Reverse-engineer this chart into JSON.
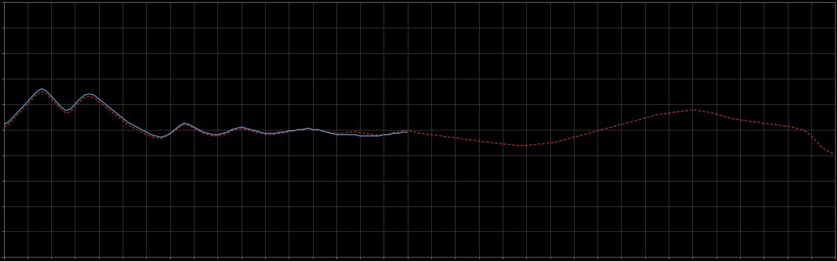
{
  "background_color": "#000000",
  "plot_bg_color": "#000000",
  "grid_color": "#4a4a4a",
  "line1_color": "#6699cc",
  "line2_color": "#cc3333",
  "figsize": [
    12.09,
    3.78
  ],
  "dpi": 100,
  "xlim": [
    0,
    350
  ],
  "ylim": [
    0,
    10
  ],
  "x_major_ticks": [
    0,
    70,
    140,
    210,
    280,
    350
  ],
  "x_minor_ticks_count": 35,
  "y_ticks": [
    0,
    1,
    2,
    3,
    4,
    5,
    6,
    7,
    8,
    9,
    10
  ],
  "blue_x": [
    0,
    2,
    4,
    6,
    8,
    10,
    12,
    14,
    16,
    18,
    20,
    22,
    24,
    26,
    28,
    30,
    32,
    34,
    36,
    38,
    40,
    42,
    44,
    46,
    48,
    50,
    52,
    54,
    56,
    58,
    60,
    62,
    64,
    66,
    68,
    70,
    72,
    74,
    76,
    78,
    80,
    82,
    84,
    86,
    88,
    90,
    92,
    94,
    96,
    98,
    100,
    102,
    104,
    106,
    108,
    110,
    112,
    114,
    116,
    118,
    120,
    122,
    124,
    126,
    128,
    130,
    132,
    134,
    136,
    138,
    140,
    142,
    144,
    146,
    148,
    150,
    152,
    154,
    156,
    158,
    160,
    162,
    164,
    166,
    168,
    170
  ],
  "blue_y": [
    5.2,
    5.3,
    5.5,
    5.7,
    5.9,
    6.1,
    6.3,
    6.5,
    6.6,
    6.5,
    6.3,
    6.1,
    5.9,
    5.75,
    5.8,
    6.0,
    6.2,
    6.35,
    6.4,
    6.35,
    6.2,
    6.05,
    5.9,
    5.75,
    5.6,
    5.45,
    5.3,
    5.2,
    5.1,
    5.0,
    4.9,
    4.8,
    4.75,
    4.7,
    4.75,
    4.85,
    5.0,
    5.15,
    5.25,
    5.2,
    5.1,
    5.0,
    4.9,
    4.85,
    4.8,
    4.8,
    4.85,
    4.9,
    5.0,
    5.05,
    5.1,
    5.05,
    5.0,
    4.95,
    4.9,
    4.85,
    4.85,
    4.85,
    4.9,
    4.9,
    4.95,
    4.95,
    5.0,
    5.0,
    5.05,
    5.0,
    5.0,
    4.95,
    4.9,
    4.85,
    4.8,
    4.8,
    4.8,
    4.8,
    4.8,
    4.75,
    4.75,
    4.75,
    4.75,
    4.75,
    4.8,
    4.8,
    4.85,
    4.85,
    4.9,
    4.9
  ],
  "red_x": [
    0,
    2,
    4,
    6,
    8,
    10,
    12,
    14,
    16,
    18,
    20,
    22,
    24,
    26,
    28,
    30,
    32,
    34,
    36,
    38,
    40,
    42,
    44,
    46,
    48,
    50,
    52,
    54,
    56,
    58,
    60,
    62,
    64,
    66,
    68,
    70,
    72,
    74,
    76,
    78,
    80,
    82,
    84,
    86,
    88,
    90,
    92,
    94,
    96,
    98,
    100,
    102,
    104,
    106,
    108,
    110,
    112,
    114,
    116,
    118,
    120,
    122,
    124,
    126,
    128,
    130,
    132,
    134,
    136,
    138,
    140,
    142,
    144,
    146,
    148,
    150,
    152,
    154,
    156,
    158,
    160,
    162,
    164,
    166,
    168,
    170,
    172,
    174,
    176,
    178,
    180,
    182,
    184,
    186,
    188,
    190,
    192,
    194,
    196,
    198,
    200,
    202,
    204,
    206,
    208,
    210,
    212,
    214,
    216,
    218,
    220,
    222,
    224,
    226,
    228,
    230,
    232,
    234,
    236,
    238,
    240,
    242,
    244,
    246,
    248,
    250,
    252,
    254,
    256,
    258,
    260,
    262,
    264,
    266,
    268,
    270,
    272,
    274,
    276,
    278,
    280,
    282,
    284,
    286,
    288,
    290,
    292,
    294,
    296,
    298,
    300,
    302,
    304,
    306,
    308,
    310,
    312,
    314,
    316,
    318,
    320,
    322,
    324,
    326,
    328,
    330,
    332,
    334,
    336,
    338,
    340,
    342,
    344,
    346,
    348,
    350
  ],
  "red_y": [
    5.1,
    5.2,
    5.4,
    5.6,
    5.8,
    6.0,
    6.2,
    6.4,
    6.5,
    6.4,
    6.2,
    6.0,
    5.8,
    5.65,
    5.7,
    5.9,
    6.1,
    6.25,
    6.3,
    6.25,
    6.1,
    5.95,
    5.8,
    5.65,
    5.5,
    5.35,
    5.2,
    5.1,
    5.0,
    4.9,
    4.8,
    4.72,
    4.68,
    4.65,
    4.72,
    4.82,
    4.95,
    5.1,
    5.2,
    5.15,
    5.05,
    4.95,
    4.85,
    4.8,
    4.75,
    4.75,
    4.8,
    4.85,
    4.95,
    5.0,
    5.05,
    5.0,
    4.95,
    4.9,
    4.85,
    4.8,
    4.8,
    4.82,
    4.85,
    4.88,
    4.92,
    4.95,
    5.0,
    5.02,
    5.05,
    5.0,
    4.98,
    4.95,
    4.9,
    4.88,
    4.85,
    4.85,
    4.88,
    4.9,
    4.92,
    4.88,
    4.85,
    4.82,
    4.8,
    4.78,
    4.8,
    4.82,
    4.88,
    4.9,
    4.95,
    4.98,
    4.92,
    4.88,
    4.85,
    4.82,
    4.8,
    4.78,
    4.75,
    4.72,
    4.7,
    4.68,
    4.65,
    4.62,
    4.6,
    4.58,
    4.55,
    4.52,
    4.5,
    4.48,
    4.46,
    4.44,
    4.42,
    4.4,
    4.38,
    4.38,
    4.38,
    4.4,
    4.42,
    4.44,
    4.46,
    4.48,
    4.5,
    4.55,
    4.6,
    4.65,
    4.7,
    4.75,
    4.8,
    4.85,
    4.9,
    4.95,
    5.0,
    5.05,
    5.1,
    5.15,
    5.2,
    5.25,
    5.3,
    5.35,
    5.4,
    5.45,
    5.5,
    5.55,
    5.6,
    5.62,
    5.65,
    5.68,
    5.7,
    5.72,
    5.75,
    5.77,
    5.75,
    5.72,
    5.7,
    5.65,
    5.6,
    5.55,
    5.5,
    5.45,
    5.4,
    5.38,
    5.35,
    5.32,
    5.3,
    5.28,
    5.25,
    5.22,
    5.2,
    5.18,
    5.15,
    5.12,
    5.1,
    5.05,
    5.0,
    4.9,
    4.75,
    4.55,
    4.35,
    4.2,
    4.1,
    4.05
  ]
}
